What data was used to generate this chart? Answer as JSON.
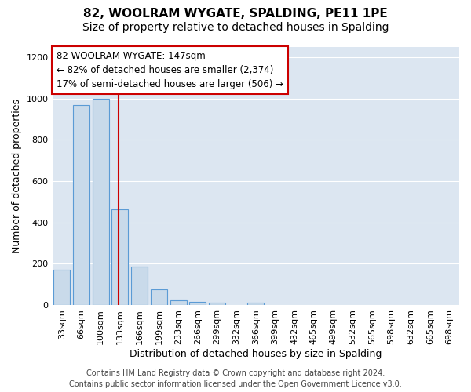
{
  "title": "82, WOOLRAM WYGATE, SPALDING, PE11 1PE",
  "subtitle": "Size of property relative to detached houses in Spalding",
  "xlabel": "Distribution of detached houses by size in Spalding",
  "ylabel": "Number of detached properties",
  "bar_labels": [
    "33sqm",
    "66sqm",
    "100sqm",
    "133sqm",
    "166sqm",
    "199sqm",
    "233sqm",
    "266sqm",
    "299sqm",
    "332sqm",
    "366sqm",
    "399sqm",
    "432sqm",
    "465sqm",
    "499sqm",
    "532sqm",
    "565sqm",
    "598sqm",
    "632sqm",
    "665sqm",
    "698sqm"
  ],
  "bar_values": [
    170,
    970,
    1000,
    465,
    185,
    75,
    22,
    15,
    13,
    0,
    12,
    0,
    0,
    0,
    0,
    0,
    0,
    0,
    0,
    0,
    0
  ],
  "bar_color": "#c9daea",
  "bar_edge_color": "#5b9bd5",
  "property_line_x": 4,
  "property_line_color": "#cc0000",
  "annotation_line1": "82 WOOLRAM WYGATE: 147sqm",
  "annotation_line2": "← 82% of detached houses are smaller (2,374)",
  "annotation_line3": "17% of semi-detached houses are larger (506) →",
  "ylim": [
    0,
    1250
  ],
  "yticks": [
    0,
    200,
    400,
    600,
    800,
    1000,
    1200
  ],
  "footer_line1": "Contains HM Land Registry data © Crown copyright and database right 2024.",
  "footer_line2": "Contains public sector information licensed under the Open Government Licence v3.0.",
  "fig_bg_color": "#ffffff",
  "plot_bg_color": "#dce6f1",
  "grid_color": "#ffffff",
  "title_fontsize": 11,
  "subtitle_fontsize": 10,
  "axis_label_fontsize": 9,
  "tick_fontsize": 8,
  "footer_fontsize": 7,
  "annot_fontsize": 8.5
}
